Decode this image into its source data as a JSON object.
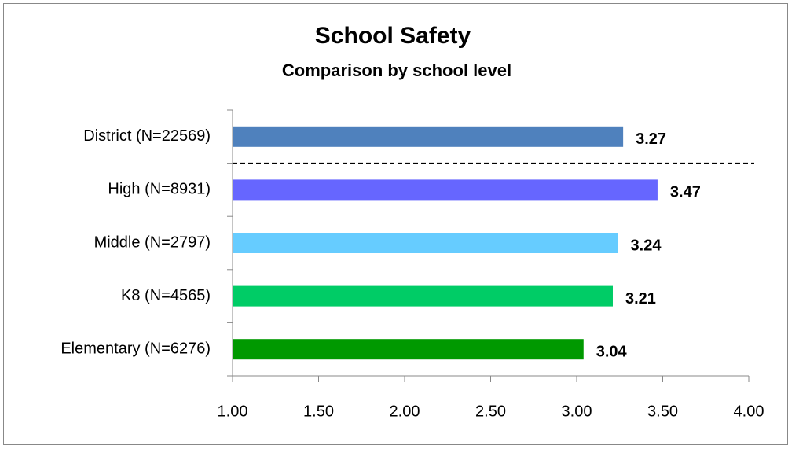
{
  "chart_data": {
    "type": "bar",
    "orientation": "horizontal",
    "title": "School Safety",
    "subtitle": "Comparison by school level",
    "categories": [
      "District (N=22569)",
      "High (N=8931)",
      "Middle (N=2797)",
      "K8 (N=4565)",
      "Elementary (N=6276)"
    ],
    "values": [
      3.27,
      3.47,
      3.24,
      3.21,
      3.04
    ],
    "colors": [
      "#4f81bd",
      "#6666ff",
      "#66ccff",
      "#00cc66",
      "#009900"
    ],
    "xlim": [
      1,
      4
    ],
    "xticks": [
      {
        "value": 1,
        "label": "1.00"
      },
      {
        "value": 1.5,
        "label": "1.50"
      },
      {
        "value": 2,
        "label": "2.00"
      },
      {
        "value": 2.5,
        "label": "2.50"
      },
      {
        "value": 3,
        "label": "3.00"
      },
      {
        "value": 3.5,
        "label": "3.50"
      },
      {
        "value": 4,
        "label": "4.00"
      }
    ],
    "grid": false
  }
}
